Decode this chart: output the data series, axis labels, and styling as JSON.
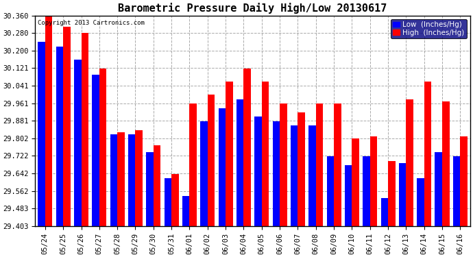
{
  "title": "Barometric Pressure Daily High/Low 20130617",
  "copyright": "Copyright 2013 Cartronics.com",
  "legend_low": "Low  (Inches/Hg)",
  "legend_high": "High  (Inches/Hg)",
  "categories": [
    "05/24",
    "05/25",
    "05/26",
    "05/27",
    "05/28",
    "05/29",
    "05/30",
    "05/31",
    "06/01",
    "06/02",
    "06/03",
    "06/04",
    "06/05",
    "06/06",
    "06/07",
    "06/08",
    "06/09",
    "06/10",
    "06/11",
    "06/12",
    "06/13",
    "06/14",
    "06/15",
    "06/16"
  ],
  "low_values": [
    30.24,
    30.22,
    30.16,
    30.09,
    29.82,
    29.82,
    29.74,
    29.62,
    29.54,
    29.88,
    29.94,
    29.98,
    29.9,
    29.88,
    29.86,
    29.86,
    29.72,
    29.68,
    29.72,
    29.53,
    29.69,
    29.62,
    29.74,
    29.72
  ],
  "high_values": [
    30.36,
    30.31,
    30.28,
    30.12,
    29.83,
    29.84,
    29.77,
    29.64,
    29.96,
    30.0,
    30.06,
    30.12,
    30.06,
    29.96,
    29.92,
    29.96,
    29.96,
    29.8,
    29.81,
    29.7,
    29.98,
    30.06,
    29.97,
    29.81
  ],
  "ylim_min": 29.403,
  "ylim_max": 30.36,
  "yticks": [
    29.403,
    29.483,
    29.562,
    29.642,
    29.722,
    29.802,
    29.881,
    29.961,
    30.041,
    30.121,
    30.2,
    30.28,
    30.36
  ],
  "bar_color_low": "#0000ff",
  "bar_color_high": "#ff0000",
  "background_color": "#ffffff",
  "grid_color": "#aaaaaa",
  "title_fontsize": 11,
  "tick_fontsize": 7.5,
  "legend_fontsize": 7.5
}
